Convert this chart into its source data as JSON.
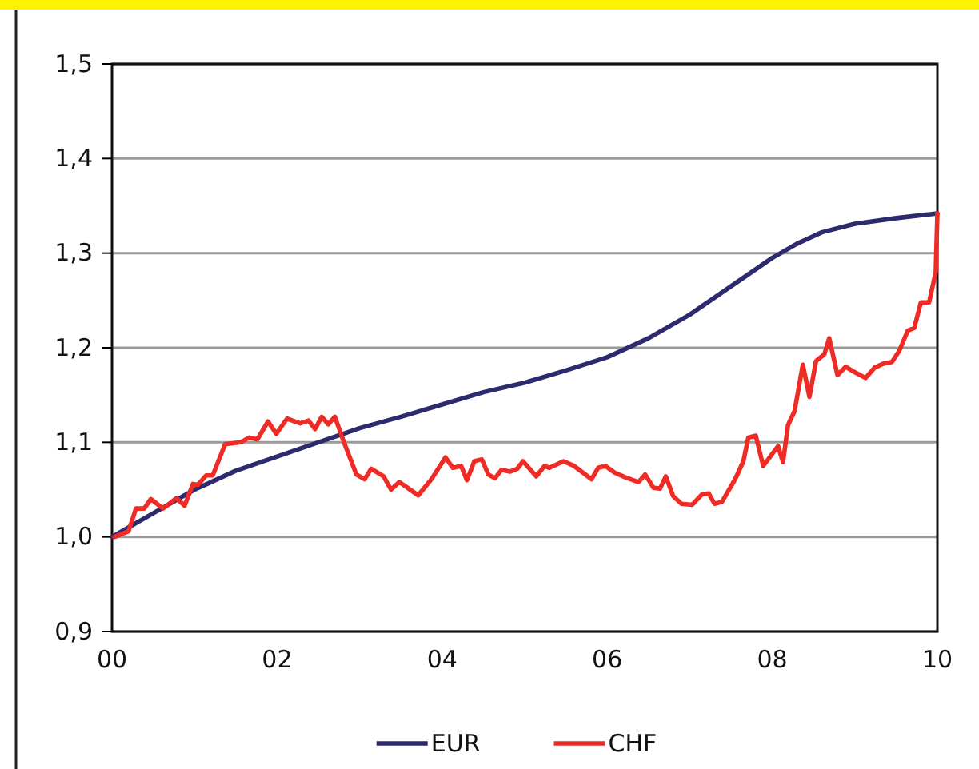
{
  "chart_data": {
    "type": "line",
    "xlim": [
      0,
      10
    ],
    "xticks": [
      {
        "value": 0,
        "label": "00"
      },
      {
        "value": 2,
        "label": "02"
      },
      {
        "value": 4,
        "label": "04"
      },
      {
        "value": 6,
        "label": "06"
      },
      {
        "value": 8,
        "label": "08"
      },
      {
        "value": 10,
        "label": "10"
      }
    ],
    "ylim": [
      0.9,
      1.5
    ],
    "yticks": [
      {
        "value": 0.9,
        "label": "0,9"
      },
      {
        "value": 1.0,
        "label": "1,0"
      },
      {
        "value": 1.1,
        "label": "1,1"
      },
      {
        "value": 1.2,
        "label": "1,2"
      },
      {
        "value": 1.3,
        "label": "1,3"
      },
      {
        "value": 1.4,
        "label": "1,4"
      },
      {
        "value": 1.5,
        "label": "1,5"
      }
    ],
    "grid": "y",
    "legend": "bottom",
    "marker": "none",
    "line_style": "solid",
    "series": [
      {
        "name": "EUR",
        "color": "#2e2a6e",
        "x": [
          0,
          0.3,
          0.6,
          1,
          1.5,
          2,
          2.5,
          3,
          3.5,
          4,
          4.5,
          5,
          5.5,
          6,
          6.5,
          7,
          7.5,
          8,
          8.3,
          8.6,
          9,
          9.5,
          10
        ],
        "values": [
          1.0,
          1.015,
          1.03,
          1.05,
          1.07,
          1.085,
          1.1,
          1.115,
          1.127,
          1.14,
          1.153,
          1.163,
          1.176,
          1.19,
          1.21,
          1.235,
          1.265,
          1.295,
          1.31,
          1.322,
          1.331,
          1.337,
          1.342
        ]
      },
      {
        "name": "CHF",
        "color": "#ee2b24",
        "x": [
          0.03,
          0.2,
          0.29,
          0.39,
          0.47,
          0.62,
          0.78,
          0.88,
          0.98,
          1.04,
          1.14,
          1.22,
          1.37,
          1.56,
          1.66,
          1.76,
          1.89,
          1.99,
          2.12,
          2.28,
          2.38,
          2.46,
          2.54,
          2.62,
          2.7,
          2.81,
          2.96,
          3.06,
          3.14,
          3.29,
          3.38,
          3.48,
          3.71,
          3.87,
          4.04,
          4.13,
          4.23,
          4.3,
          4.39,
          4.48,
          4.56,
          4.64,
          4.72,
          4.82,
          4.91,
          4.98,
          5.14,
          5.24,
          5.3,
          5.47,
          5.6,
          5.81,
          5.89,
          5.98,
          6.09,
          6.22,
          6.38,
          6.46,
          6.56,
          6.64,
          6.71,
          6.8,
          6.9,
          7.03,
          7.15,
          7.23,
          7.3,
          7.39,
          7.55,
          7.65,
          7.71,
          7.8,
          7.89,
          8.07,
          8.13,
          8.19,
          8.27,
          8.37,
          8.45,
          8.53,
          8.63,
          8.69,
          8.79,
          8.89,
          8.98,
          9.13,
          9.24,
          9.34,
          9.45,
          9.54,
          9.64,
          9.72,
          9.8,
          9.9,
          9.98,
          10
        ],
        "values": [
          1.0,
          1.006,
          1.03,
          1.03,
          1.04,
          1.03,
          1.041,
          1.033,
          1.056,
          1.055,
          1.065,
          1.065,
          1.098,
          1.1,
          1.105,
          1.103,
          1.122,
          1.109,
          1.125,
          1.12,
          1.123,
          1.114,
          1.127,
          1.119,
          1.127,
          1.1,
          1.066,
          1.061,
          1.072,
          1.064,
          1.05,
          1.058,
          1.044,
          1.061,
          1.084,
          1.073,
          1.075,
          1.06,
          1.08,
          1.082,
          1.066,
          1.062,
          1.071,
          1.069,
          1.072,
          1.08,
          1.064,
          1.075,
          1.073,
          1.08,
          1.075,
          1.061,
          1.073,
          1.075,
          1.068,
          1.063,
          1.058,
          1.066,
          1.052,
          1.051,
          1.064,
          1.043,
          1.035,
          1.034,
          1.045,
          1.046,
          1.035,
          1.037,
          1.061,
          1.08,
          1.105,
          1.107,
          1.075,
          1.096,
          1.079,
          1.118,
          1.133,
          1.182,
          1.148,
          1.186,
          1.193,
          1.21,
          1.171,
          1.18,
          1.175,
          1.168,
          1.179,
          1.183,
          1.185,
          1.197,
          1.218,
          1.221,
          1.248,
          1.248,
          1.28,
          1.342
        ]
      }
    ]
  }
}
